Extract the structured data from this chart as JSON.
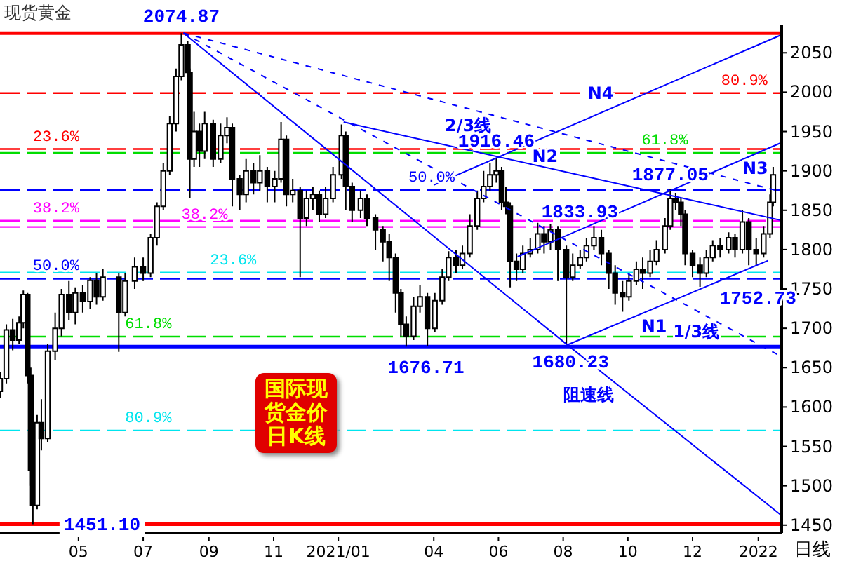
{
  "chart_data": {
    "type": "candlestick",
    "title": "现货黄金",
    "color": "#000000",
    "x": [
      "2020-02-17",
      "2020-02-23",
      "2020-02-29",
      "2020-03-06",
      "2020-03-10",
      "2020-03-14",
      "2020-03-17",
      "2020-03-19",
      "2020-03-23",
      "2020-03-27",
      "2020-04-02",
      "2020-04-09",
      "2020-04-15",
      "2020-04-22",
      "2020-04-28",
      "2020-05-05",
      "2020-05-12",
      "2020-05-18",
      "2020-05-24",
      "2020-06-08",
      "2020-06-14",
      "2020-06-23",
      "2020-07-01",
      "2020-07-08",
      "2020-07-14",
      "2020-07-20",
      "2020-07-26",
      "2020-08-01",
      "2020-08-06",
      "2020-08-12",
      "2020-08-14",
      "2020-08-18",
      "2020-08-23",
      "2020-08-28",
      "2020-09-05",
      "2020-09-12",
      "2020-09-18",
      "2020-09-23",
      "2020-09-30",
      "2020-10-06",
      "2020-10-13",
      "2020-10-19",
      "2020-10-26",
      "2020-11-02",
      "2020-11-08",
      "2020-11-13",
      "2020-11-19",
      "2020-11-26",
      "2020-12-02",
      "2020-12-08",
      "2020-12-14",
      "2020-12-20",
      "2020-12-27",
      "2021-01-04",
      "2021-01-08",
      "2021-01-14",
      "2021-01-22",
      "2021-01-28",
      "2021-02-05",
      "2021-02-12",
      "2021-02-18",
      "2021-02-24",
      "2021-03-01",
      "2021-03-06",
      "2021-03-13",
      "2021-03-19",
      "2021-03-26",
      "2021-04-02",
      "2021-04-09",
      "2021-04-15",
      "2021-04-22",
      "2021-04-28",
      "2021-05-05",
      "2021-05-12",
      "2021-05-18",
      "2021-05-24",
      "2021-05-30",
      "2021-06-04",
      "2021-06-08",
      "2021-06-12",
      "2021-06-18",
      "2021-06-24",
      "2021-07-01",
      "2021-07-08",
      "2021-07-14",
      "2021-07-20",
      "2021-07-27",
      "2021-08-04",
      "2021-08-10",
      "2021-08-17",
      "2021-08-23",
      "2021-08-30",
      "2021-09-06",
      "2021-09-13",
      "2021-09-19",
      "2021-09-26",
      "2021-10-02",
      "2021-10-09",
      "2021-10-15",
      "2021-10-22",
      "2021-10-28",
      "2021-11-05",
      "2021-11-10",
      "2021-11-15",
      "2021-11-20",
      "2021-11-24",
      "2021-12-01",
      "2021-12-08",
      "2021-12-14",
      "2021-12-20",
      "2021-12-27",
      "2022-01-04",
      "2022-01-10",
      "2022-01-17",
      "2022-01-23",
      "2022-01-30",
      "2022-02-06",
      "2022-02-12",
      "2022-02-15"
    ],
    "ohlc": [
      [
        1620,
        1645,
        1612,
        1636
      ],
      [
        1636,
        1705,
        1630,
        1698
      ],
      [
        1698,
        1712,
        1672,
        1685
      ],
      [
        1685,
        1715,
        1680,
        1707
      ],
      [
        1707,
        1748,
        1700,
        1743
      ],
      [
        1743,
        1745,
        1630,
        1640
      ],
      [
        1640,
        1650,
        1500,
        1520
      ],
      [
        1520,
        1535,
        1451.1,
        1475
      ],
      [
        1475,
        1590,
        1470,
        1580
      ],
      [
        1580,
        1610,
        1545,
        1560
      ],
      [
        1560,
        1680,
        1555,
        1671
      ],
      [
        1671,
        1720,
        1660,
        1700
      ],
      [
        1700,
        1750,
        1690,
        1743
      ],
      [
        1743,
        1760,
        1710,
        1720
      ],
      [
        1720,
        1752,
        1705,
        1745
      ],
      [
        1745,
        1755,
        1720,
        1734
      ],
      [
        1734,
        1765,
        1725,
        1761
      ],
      [
        1761,
        1770,
        1730,
        1740
      ],
      [
        1740,
        1775,
        1735,
        1765
      ],
      [
        1765,
        1770,
        1670,
        1720
      ],
      [
        1720,
        1770,
        1715,
        1760
      ],
      [
        1760,
        1790,
        1750,
        1778
      ],
      [
        1778,
        1790,
        1760,
        1770
      ],
      [
        1770,
        1820,
        1765,
        1815
      ],
      [
        1815,
        1860,
        1805,
        1855
      ],
      [
        1855,
        1910,
        1850,
        1900
      ],
      [
        1900,
        1970,
        1895,
        1960
      ],
      [
        1960,
        2030,
        1950,
        2020
      ],
      [
        2020,
        2074.87,
        2015,
        2060
      ],
      [
        2060,
        2065,
        2010,
        2025
      ],
      [
        2025,
        2030,
        1865,
        1915
      ],
      [
        1915,
        1975,
        1905,
        1950
      ],
      [
        1950,
        1960,
        1905,
        1925
      ],
      [
        1925,
        1975,
        1915,
        1960
      ],
      [
        1960,
        1965,
        1905,
        1915
      ],
      [
        1915,
        1960,
        1910,
        1945
      ],
      [
        1945,
        1968,
        1935,
        1955
      ],
      [
        1955,
        1960,
        1855,
        1890
      ],
      [
        1890,
        1895,
        1850,
        1870
      ],
      [
        1870,
        1915,
        1860,
        1900
      ],
      [
        1900,
        1910,
        1870,
        1885
      ],
      [
        1885,
        1920,
        1875,
        1900
      ],
      [
        1900,
        1905,
        1860,
        1880
      ],
      [
        1880,
        1900,
        1860,
        1890
      ],
      [
        1890,
        1962,
        1885,
        1940
      ],
      [
        1940,
        1945,
        1855,
        1870
      ],
      [
        1870,
        1890,
        1860,
        1875
      ],
      [
        1875,
        1880,
        1765,
        1840
      ],
      [
        1840,
        1875,
        1830,
        1865
      ],
      [
        1865,
        1880,
        1850,
        1870
      ],
      [
        1870,
        1875,
        1835,
        1845
      ],
      [
        1845,
        1880,
        1840,
        1865
      ],
      [
        1865,
        1905,
        1860,
        1895
      ],
      [
        1895,
        1959,
        1890,
        1945
      ],
      [
        1945,
        1950,
        1850,
        1880
      ],
      [
        1880,
        1885,
        1835,
        1850
      ],
      [
        1850,
        1875,
        1840,
        1865
      ],
      [
        1865,
        1870,
        1830,
        1840
      ],
      [
        1840,
        1845,
        1800,
        1825
      ],
      [
        1825,
        1830,
        1785,
        1810
      ],
      [
        1810,
        1820,
        1760,
        1790
      ],
      [
        1790,
        1795,
        1720,
        1745
      ],
      [
        1745,
        1750,
        1690,
        1705
      ],
      [
        1705,
        1715,
        1676.71,
        1690
      ],
      [
        1690,
        1740,
        1685,
        1728
      ],
      [
        1728,
        1755,
        1720,
        1740
      ],
      [
        1740,
        1745,
        1677,
        1700
      ],
      [
        1700,
        1745,
        1695,
        1735
      ],
      [
        1735,
        1775,
        1730,
        1765
      ],
      [
        1765,
        1798,
        1760,
        1790
      ],
      [
        1790,
        1800,
        1770,
        1780
      ],
      [
        1780,
        1805,
        1775,
        1795
      ],
      [
        1795,
        1845,
        1790,
        1830
      ],
      [
        1830,
        1875,
        1825,
        1865
      ],
      [
        1865,
        1900,
        1860,
        1880
      ],
      [
        1880,
        1910,
        1875,
        1895
      ],
      [
        1895,
        1916.46,
        1885,
        1900
      ],
      [
        1900,
        1905,
        1850,
        1860
      ],
      [
        1860,
        1880,
        1845,
        1855
      ],
      [
        1855,
        1860,
        1752,
        1785
      ],
      [
        1785,
        1795,
        1760,
        1775
      ],
      [
        1775,
        1805,
        1770,
        1795
      ],
      [
        1795,
        1815,
        1790,
        1800
      ],
      [
        1800,
        1833.93,
        1795,
        1820
      ],
      [
        1820,
        1830,
        1795,
        1810
      ],
      [
        1810,
        1832,
        1800,
        1825
      ],
      [
        1825,
        1830,
        1760,
        1800
      ],
      [
        1800,
        1805,
        1680.23,
        1765
      ],
      [
        1765,
        1795,
        1760,
        1780
      ],
      [
        1780,
        1800,
        1775,
        1790
      ],
      [
        1790,
        1815,
        1785,
        1805
      ],
      [
        1805,
        1830,
        1800,
        1815
      ],
      [
        1815,
        1825,
        1780,
        1795
      ],
      [
        1795,
        1800,
        1750,
        1770
      ],
      [
        1770,
        1780,
        1730,
        1745
      ],
      [
        1745,
        1760,
        1721,
        1740
      ],
      [
        1740,
        1770,
        1735,
        1760
      ],
      [
        1760,
        1785,
        1755,
        1775
      ],
      [
        1775,
        1790,
        1750,
        1770
      ],
      [
        1770,
        1800,
        1765,
        1785
      ],
      [
        1785,
        1812,
        1780,
        1800
      ],
      [
        1800,
        1840,
        1795,
        1830
      ],
      [
        1830,
        1877.05,
        1825,
        1865
      ],
      [
        1865,
        1872,
        1850,
        1860
      ],
      [
        1860,
        1865,
        1830,
        1845
      ],
      [
        1845,
        1850,
        1780,
        1795
      ],
      [
        1795,
        1800,
        1765,
        1780
      ],
      [
        1780,
        1790,
        1752.73,
        1770
      ],
      [
        1770,
        1800,
        1765,
        1790
      ],
      [
        1790,
        1812,
        1785,
        1805
      ],
      [
        1805,
        1815,
        1790,
        1800
      ],
      [
        1800,
        1822,
        1795,
        1815
      ],
      [
        1815,
        1820,
        1790,
        1800
      ],
      [
        1800,
        1850,
        1795,
        1835
      ],
      [
        1835,
        1840,
        1780,
        1800
      ],
      [
        1800,
        1815,
        1780,
        1795
      ],
      [
        1795,
        1830,
        1790,
        1820
      ],
      [
        1820,
        1870,
        1815,
        1860
      ],
      [
        1860,
        1905,
        1855,
        1895
      ]
    ],
    "series": [
      {
        "name": "阻速线",
        "type": "line",
        "color": "#0000ff",
        "line_style": "solid",
        "x": [
          "2020-08-08",
          "2021-08-04",
          "2022-02-23"
        ],
        "values": [
          2075,
          1680,
          1462
        ]
      },
      {
        "name": "2/3线",
        "type": "line",
        "color": "#0000ff",
        "line_style": "dashed",
        "x": [
          "2020-08-08",
          "2022-02-18"
        ],
        "values": [
          2075,
          1875
        ]
      },
      {
        "name": "1/3线",
        "type": "line",
        "color": "#0000ff",
        "line_style": "dashed",
        "x": [
          "2020-08-08",
          "2022-02-20"
        ],
        "values": [
          2075,
          1666
        ]
      },
      {
        "name": "N2",
        "type": "line",
        "color": "#0000ff",
        "line_style": "solid",
        "x": [
          "2021-01-06",
          "2022-02-23"
        ],
        "values": [
          1962,
          1837
        ]
      },
      {
        "name": "N4",
        "type": "line",
        "color": "#0000ff",
        "line_style": "solid",
        "x": [
          "2021-04-01",
          "2022-02-23"
        ],
        "values": [
          1882,
          2073
        ]
      },
      {
        "name": "N3",
        "type": "line",
        "color": "#0000ff",
        "line_style": "solid",
        "x": [
          "2021-06-19",
          "2022-02-23"
        ],
        "values": [
          1791,
          1936
        ]
      },
      {
        "name": "N1",
        "type": "line",
        "color": "#0000ff",
        "line_style": "solid",
        "x": [
          "2021-08-05",
          "2022-02-10"
        ],
        "values": [
          1679,
          1786
        ]
      }
    ],
    "ref_lines": [
      {
        "axis": "y",
        "value": 2074.87,
        "color": "#ff0000",
        "line_style": "solid"
      },
      {
        "axis": "y",
        "value": 1451.1,
        "color": "#ff0000",
        "line_style": "solid"
      },
      {
        "axis": "y",
        "value": 1676.71,
        "color": "#0000ff",
        "line_style": "solid"
      },
      {
        "axis": "y",
        "value": 1927.7,
        "color": "#ff0000",
        "line_style": "dashed"
      },
      {
        "axis": "y",
        "value": 1836.6,
        "color": "#ff00ff",
        "line_style": "dashed"
      },
      {
        "axis": "y",
        "value": 1763.0,
        "color": "#0000ff",
        "line_style": "dashed"
      },
      {
        "axis": "y",
        "value": 1689.4,
        "color": "#00dd00",
        "line_style": "dashed"
      },
      {
        "axis": "y",
        "value": 1570.2,
        "color": "#00e5ee",
        "line_style": "dashed"
      },
      {
        "axis": "y",
        "value": 1998.8,
        "color": "#ff0000",
        "line_style": "dashed"
      },
      {
        "axis": "y",
        "value": 1922.8,
        "color": "#00dd00",
        "line_style": "dashed"
      },
      {
        "axis": "y",
        "value": 1875.8,
        "color": "#0000ff",
        "line_style": "dashed"
      },
      {
        "axis": "y",
        "value": 1828.8,
        "color": "#ff00ff",
        "line_style": "dashed"
      },
      {
        "axis": "y",
        "value": 1770.7,
        "color": "#00e5ee",
        "line_style": "dashed"
      }
    ],
    "annotations": [
      {
        "text": "2074.87",
        "x": "2020-08-06",
        "y": 2074.87
      },
      {
        "text": "1451.10",
        "x": "2020-03-19",
        "y": 1451.1
      },
      {
        "text": "1916.46",
        "x": "2021-05-30",
        "y": 1916.46
      },
      {
        "text": "1877.05",
        "x": "2021-11-10",
        "y": 1877.05
      },
      {
        "text": "1833.93",
        "x": "2021-07-08",
        "y": 1833.93
      },
      {
        "text": "1752.73",
        "x": "2021-12-08",
        "y": 1752.73
      },
      {
        "text": "1676.71",
        "x": "2021-03-06",
        "y": 1676.71
      },
      {
        "text": "1680.23",
        "x": "2021-08-04",
        "y": 1680.23
      },
      {
        "text": "23.6%",
        "x": "2020-03-19",
        "y": 1927.7
      },
      {
        "text": "38.2%",
        "x": "2020-03-19",
        "y": 1836.6
      },
      {
        "text": "50.0%",
        "x": "2020-03-19",
        "y": 1763.0
      },
      {
        "text": "61.8%",
        "x": "2020-06-14",
        "y": 1689.4
      },
      {
        "text": "80.9%",
        "x": "2020-06-14",
        "y": 1570.2
      },
      {
        "text": "80.9%",
        "x": "2021-12-28",
        "y": 1998.8
      },
      {
        "text": "61.8%",
        "x": "2021-10-14",
        "y": 1922.8
      },
      {
        "text": "50.0%",
        "x": "2021-03-08",
        "y": 1875.8
      },
      {
        "text": "38.2%",
        "x": "2020-08-06",
        "y": 1828.8
      },
      {
        "text": "23.6%",
        "x": "2020-09-02",
        "y": 1770.7
      },
      "国际现货金价日K线",
      "日线"
    ],
    "xlim": [
      "2020-02-17",
      "2022-02-23"
    ],
    "ylim": [
      1440,
      2085
    ],
    "xticks": [
      {
        "value": "2020-05-01",
        "label": "05"
      },
      {
        "value": "2020-07-01",
        "label": "07"
      },
      {
        "value": "2020-09-01",
        "label": "09"
      },
      {
        "value": "2020-11-01",
        "label": "11"
      },
      {
        "value": "2021-01-01",
        "label": "2021/01"
      },
      {
        "value": "2021-04-01",
        "label": "04"
      },
      {
        "value": "2021-06-01",
        "label": "06"
      },
      {
        "value": "2021-08-01",
        "label": "08"
      },
      {
        "value": "2021-10-01",
        "label": "10"
      },
      {
        "value": "2021-12-01",
        "label": "12"
      },
      {
        "value": "2022-02-01",
        "label": "2022"
      }
    ],
    "yticks": [
      1450,
      1500,
      1550,
      1600,
      1650,
      1700,
      1750,
      1800,
      1850,
      1900,
      1950,
      2000,
      2050
    ],
    "marker": "none"
  }
}
